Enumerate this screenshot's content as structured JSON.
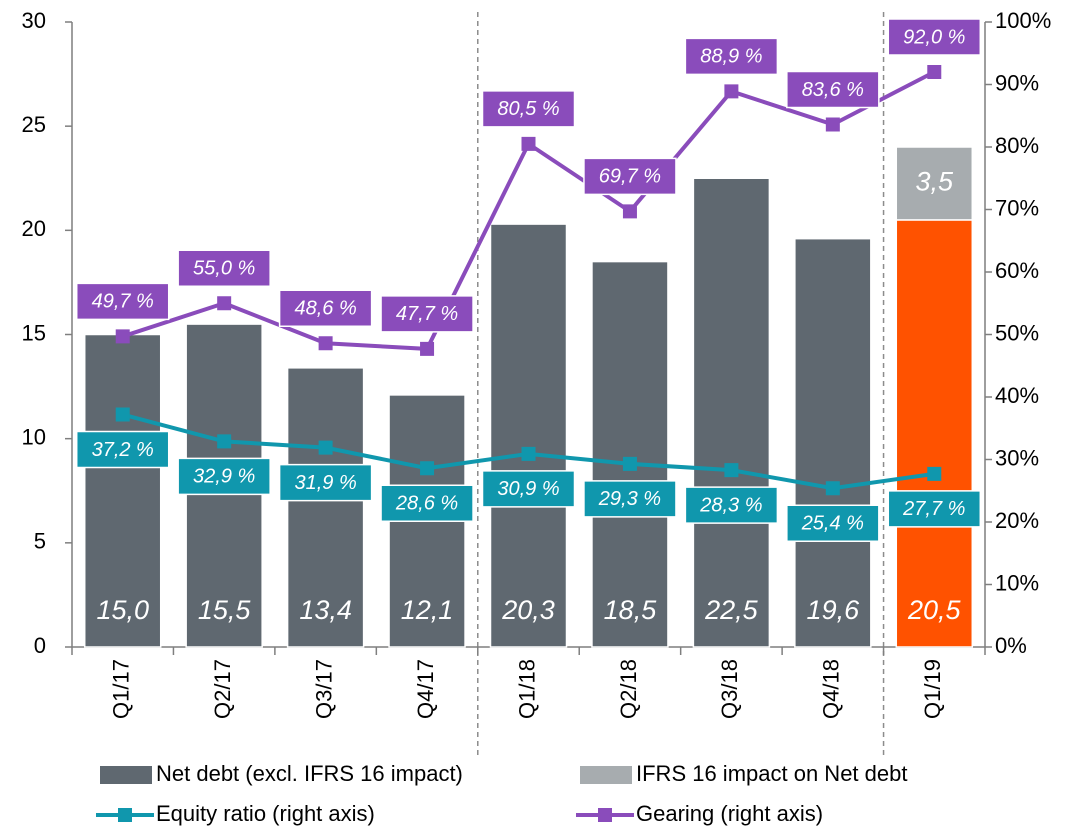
{
  "chart_data": {
    "type": "bar-line",
    "categories": [
      "Q1/17",
      "Q2/17",
      "Q3/17",
      "Q4/17",
      "Q1/18",
      "Q2/18",
      "Q3/18",
      "Q4/18",
      "Q1/19"
    ],
    "series": [
      {
        "name": "Net debt (excl. IFRS 16 impact)",
        "kind": "bar",
        "color": "#5f6870",
        "colors": [
          "#5f6870",
          "#5f6870",
          "#5f6870",
          "#5f6870",
          "#5f6870",
          "#5f6870",
          "#5f6870",
          "#5f6870",
          "#ff5200"
        ],
        "values": [
          15.0,
          15.5,
          13.4,
          12.1,
          20.3,
          18.5,
          22.5,
          19.6,
          20.5
        ],
        "value_labels": [
          "15,0",
          "15,5",
          "13,4",
          "12,1",
          "20,3",
          "18,5",
          "22,5",
          "19,6",
          "20,5"
        ]
      },
      {
        "name": "IFRS 16 impact on Net debt",
        "kind": "bar",
        "color": "#a7acaf",
        "values": [
          null,
          null,
          null,
          null,
          null,
          null,
          null,
          null,
          3.5
        ],
        "value_labels": [
          null,
          null,
          null,
          null,
          null,
          null,
          null,
          null,
          "3,5"
        ]
      },
      {
        "name": "Equity ratio (right axis)",
        "kind": "line",
        "axis": "y2",
        "color": "#1097ad",
        "values": [
          37.2,
          32.9,
          31.9,
          28.6,
          30.9,
          29.3,
          28.3,
          25.4,
          27.7
        ],
        "value_labels": [
          "37,2 %",
          "32,9 %",
          "31,9 %",
          "28,6 %",
          "30,9 %",
          "29,3 %",
          "28,3 %",
          "25,4 %",
          "27,7 %"
        ]
      },
      {
        "name": "Gearing (right axis)",
        "kind": "line",
        "axis": "y2",
        "color": "#8a4cbb",
        "values": [
          49.7,
          55.0,
          48.6,
          47.7,
          80.5,
          69.7,
          88.9,
          83.6,
          92.0
        ],
        "value_labels": [
          "49,7 %",
          "55,0 %",
          "48,6 %",
          "47,7 %",
          "80,5 %",
          "69,7 %",
          "88,9 %",
          "83,6 %",
          "92,0 %"
        ]
      }
    ],
    "ylim": [
      0,
      30
    ],
    "yticks": [
      0,
      5,
      10,
      15,
      20,
      25,
      30
    ],
    "y2lim": [
      0,
      100
    ],
    "y2ticks": [
      {
        "value": 0,
        "label": "0%"
      },
      {
        "value": 10,
        "label": "10%"
      },
      {
        "value": 20,
        "label": "20%"
      },
      {
        "value": 30,
        "label": "30%"
      },
      {
        "value": 40,
        "label": "40%"
      },
      {
        "value": 50,
        "label": "50%"
      },
      {
        "value": 60,
        "label": "60%"
      },
      {
        "value": 70,
        "label": "70%"
      },
      {
        "value": 80,
        "label": "80%"
      },
      {
        "value": 90,
        "label": "90%"
      },
      {
        "value": 100,
        "label": "100%"
      }
    ],
    "legend": "bottom"
  }
}
